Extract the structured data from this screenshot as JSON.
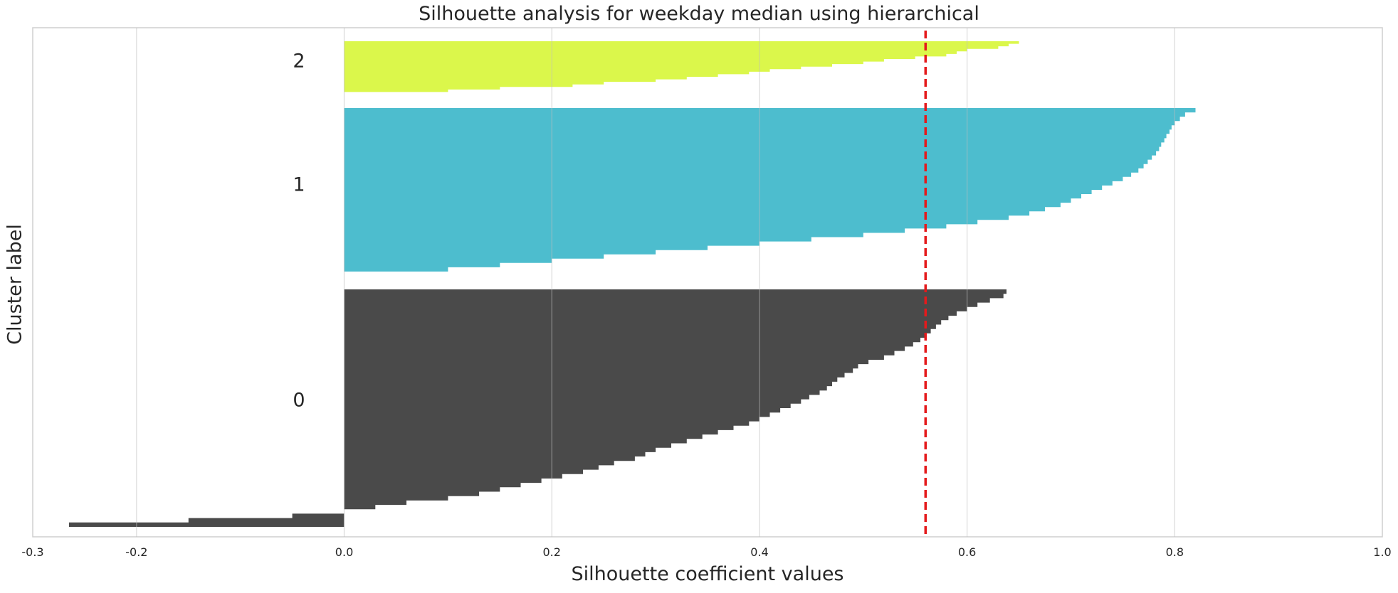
{
  "chart_data": {
    "type": "area",
    "title": "Silhouette analysis for weekday median using hierarchical",
    "xlabel": "Silhouette coefficient values",
    "ylabel": "Cluster label",
    "xlim": [
      -0.3,
      1.0
    ],
    "xticks": [
      -0.3,
      -0.2,
      0.0,
      0.2,
      0.4,
      0.6,
      0.8,
      1.0
    ],
    "xtick_labels": [
      "-0.3",
      "-0.2",
      "0.0",
      "0.2",
      "0.4",
      "0.6",
      "0.8",
      "1.0"
    ],
    "grid": "vertical",
    "average_silhouette_score": 0.56,
    "average_line_color": "#e41a1c",
    "clusters": [
      {
        "label": "0",
        "color": "#4a4a4a",
        "sorted_values_top_to_bottom": [
          0.638,
          0.635,
          0.622,
          0.61,
          0.6,
          0.59,
          0.582,
          0.575,
          0.57,
          0.565,
          0.56,
          0.555,
          0.548,
          0.54,
          0.53,
          0.52,
          0.505,
          0.495,
          0.49,
          0.482,
          0.475,
          0.47,
          0.465,
          0.458,
          0.448,
          0.44,
          0.43,
          0.42,
          0.41,
          0.4,
          0.39,
          0.375,
          0.36,
          0.345,
          0.33,
          0.315,
          0.3,
          0.29,
          0.28,
          0.26,
          0.245,
          0.23,
          0.21,
          0.19,
          0.17,
          0.15,
          0.13,
          0.1,
          0.06,
          0.03,
          0.0,
          -0.05,
          -0.15,
          -0.265
        ]
      },
      {
        "label": "1",
        "color": "#4dbdce",
        "sorted_values_top_to_bottom": [
          0.82,
          0.81,
          0.805,
          0.8,
          0.797,
          0.795,
          0.792,
          0.79,
          0.787,
          0.785,
          0.782,
          0.778,
          0.774,
          0.77,
          0.765,
          0.758,
          0.75,
          0.74,
          0.73,
          0.72,
          0.71,
          0.7,
          0.69,
          0.675,
          0.66,
          0.64,
          0.61,
          0.58,
          0.54,
          0.5,
          0.45,
          0.4,
          0.35,
          0.3,
          0.25,
          0.2,
          0.15,
          0.1,
          0.0
        ]
      },
      {
        "label": "2",
        "color": "#dbf74b",
        "sorted_values_top_to_bottom": [
          0.65,
          0.64,
          0.63,
          0.6,
          0.59,
          0.58,
          0.55,
          0.52,
          0.5,
          0.47,
          0.44,
          0.41,
          0.39,
          0.36,
          0.33,
          0.3,
          0.25,
          0.22,
          0.15,
          0.1,
          0.0
        ]
      }
    ]
  }
}
